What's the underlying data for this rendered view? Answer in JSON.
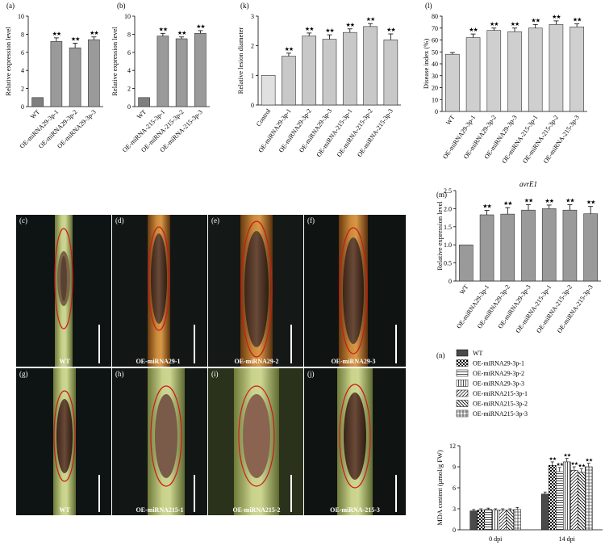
{
  "chart_data": [
    {
      "id": "a",
      "panel_label": "(a)",
      "type": "bar",
      "ylabel": "Relative expression level",
      "ylim": [
        0,
        10
      ],
      "yticks": [
        0,
        2,
        4,
        6,
        8,
        10
      ],
      "categories": [
        "WT",
        "OE-miRNA29-3p-1",
        "OE-miRNA29-3p-2",
        "OE-miRNA29-3p-3"
      ],
      "values": [
        1.0,
        7.2,
        6.5,
        7.4
      ],
      "errors": [
        0,
        0.4,
        0.5,
        0.3
      ],
      "sig": [
        "",
        "★★",
        "★★",
        "★★"
      ],
      "bar_colors": [
        "#7f7f7f",
        "#9a9a9a",
        "#9a9a9a",
        "#9a9a9a"
      ]
    },
    {
      "id": "b",
      "panel_label": "(b)",
      "type": "bar",
      "ylabel": "Relative expression level",
      "ylim": [
        0,
        10
      ],
      "yticks": [
        0,
        2,
        4,
        6,
        8,
        10
      ],
      "categories": [
        "WT",
        "OE-miRNA-215-3p-1",
        "OE-miRNA-215-3p-2",
        "OE-miRNA-215-3p-3"
      ],
      "values": [
        1.0,
        7.8,
        7.5,
        8.1
      ],
      "errors": [
        0,
        0.3,
        0.2,
        0.3
      ],
      "sig": [
        "",
        "★★",
        "★★",
        "★★"
      ],
      "bar_colors": [
        "#7f7f7f",
        "#9a9a9a",
        "#9a9a9a",
        "#9a9a9a"
      ]
    },
    {
      "id": "k",
      "panel_label": "(k)",
      "type": "bar",
      "ylabel": "Relative lesion diameter",
      "ylim": [
        0,
        3
      ],
      "yticks": [
        0,
        1,
        2,
        3
      ],
      "categories": [
        "Control",
        "OE-miRNA29-3p-1",
        "OE-miRNA29-3p-2",
        "OE-miRNA29-3p-3",
        "OE-miRNA-215-3p-1",
        "OE-miRNA-215-3p-2",
        "OE-miRNA-215-3p-3"
      ],
      "values": [
        1.0,
        1.65,
        2.33,
        2.22,
        2.45,
        2.65,
        2.2
      ],
      "errors": [
        0,
        0.1,
        0.1,
        0.15,
        0.12,
        0.1,
        0.2
      ],
      "sig": [
        "",
        "★★",
        "★★",
        "★★",
        "★★",
        "★★",
        "★★"
      ],
      "bar_colors": [
        "#e0e0e0",
        "#c8c8c8",
        "#c8c8c8",
        "#c8c8c8",
        "#c8c8c8",
        "#c8c8c8",
        "#c8c8c8"
      ]
    },
    {
      "id": "l",
      "panel_label": "(l)",
      "type": "bar",
      "ylabel": "Disease index (%)",
      "ylim": [
        0,
        80
      ],
      "yticks": [
        0,
        10,
        20,
        30,
        40,
        50,
        60,
        70,
        80
      ],
      "categories": [
        "WT",
        "OE-miRNA29-3p-1",
        "OE-miRNA29-3p-2",
        "OE-miRNA29-3p-3",
        "OE-miRNA-215-3p-1",
        "OE-miRNA-215-3p-2",
        "OE-miRNA-215-3p-3"
      ],
      "values": [
        48,
        62,
        68,
        67,
        70,
        73,
        71
      ],
      "errors": [
        1.5,
        3,
        2,
        3,
        3,
        3,
        2.5
      ],
      "sig": [
        "",
        "★★",
        "★★",
        "★★",
        "★★",
        "★★",
        "★★"
      ],
      "bar_colors": [
        "#cfcfcf",
        "#cfcfcf",
        "#cfcfcf",
        "#cfcfcf",
        "#cfcfcf",
        "#cfcfcf",
        "#cfcfcf"
      ]
    },
    {
      "id": "m",
      "panel_label": "(m)",
      "type": "bar",
      "title": "avrE1",
      "ylabel": "Relative expression level",
      "ylim": [
        0,
        2.5
      ],
      "yticks": [
        0,
        0.5,
        1.0,
        1.5,
        2.0,
        2.5
      ],
      "ytick_labels": [
        "0",
        "0.5",
        "1.0",
        "1.5",
        "2.0",
        "2.5"
      ],
      "categories": [
        "WT",
        "OE-miRNA29-3p-1",
        "OE-miRNA29-3p-2",
        "OE-miRNA29-3p-3",
        "OE-miRNA-215-3p-1",
        "OE-miRNA-215-3p-2",
        "OE-miRNA-215-3p-3"
      ],
      "values": [
        1.0,
        1.83,
        1.85,
        1.96,
        2.0,
        1.96,
        1.86
      ],
      "errors": [
        0,
        0.12,
        0.18,
        0.15,
        0.1,
        0.15,
        0.2
      ],
      "sig": [
        "",
        "★★",
        "★★",
        "★★",
        "★★",
        "★★",
        "★★"
      ],
      "bar_colors": [
        "#9a9a9a",
        "#9a9a9a",
        "#9a9a9a",
        "#9a9a9a",
        "#9a9a9a",
        "#9a9a9a",
        "#9a9a9a"
      ]
    },
    {
      "id": "n",
      "panel_label": "(n)",
      "type": "bar",
      "ylabel": "MDA content (μmol/g FW)",
      "ylim": [
        0,
        12
      ],
      "yticks": [
        0,
        3,
        6,
        9,
        12
      ],
      "categories": [
        "0 dpi",
        "14 dpi"
      ],
      "legend_position": "top",
      "series": [
        {
          "name": "WT",
          "values": [
            2.7,
            5.1
          ],
          "errors": [
            0.2,
            0.3
          ],
          "sig": [
            "",
            ""
          ],
          "pattern": "solid"
        },
        {
          "name": "OE-miRNA29-3p-1",
          "values": [
            2.8,
            9.2
          ],
          "errors": [
            0.2,
            0.5
          ],
          "sig": [
            "",
            "★★"
          ],
          "pattern": "checker"
        },
        {
          "name": "OE-miRNA29-3p-2",
          "values": [
            2.9,
            8.3
          ],
          "errors": [
            0.2,
            0.6
          ],
          "sig": [
            "",
            "★★"
          ],
          "pattern": "hlines"
        },
        {
          "name": "OE-miRNA29-3p-3",
          "values": [
            2.8,
            9.7
          ],
          "errors": [
            0.2,
            0.5
          ],
          "sig": [
            "",
            "★★"
          ],
          "pattern": "vlines"
        },
        {
          "name": "OE-miRNA215-3p-1",
          "values": [
            2.8,
            8.5
          ],
          "errors": [
            0.2,
            0.5
          ],
          "sig": [
            "",
            "★★"
          ],
          "pattern": "diag"
        },
        {
          "name": "OE-miRNA215-3p-2",
          "values": [
            2.8,
            8.2
          ],
          "errors": [
            0.2,
            0.5
          ],
          "sig": [
            "",
            "★★"
          ],
          "pattern": "backdiag"
        },
        {
          "name": "OE-miRNA215-3p-3",
          "values": [
            2.9,
            9.0
          ],
          "errors": [
            0.3,
            0.5
          ],
          "sig": [
            "",
            "★★"
          ],
          "pattern": "grid"
        }
      ]
    }
  ],
  "photos": {
    "panels": [
      {
        "letter": "(c)",
        "label": "WT"
      },
      {
        "letter": "(d)",
        "label": "OE-miRNA29-1"
      },
      {
        "letter": "(e)",
        "label": "OE-miRNA29-2"
      },
      {
        "letter": "(f)",
        "label": "OE-miRNA29-3"
      },
      {
        "letter": "(g)",
        "label": "WT"
      },
      {
        "letter": "(h)",
        "label": "OE-miRNA215-1"
      },
      {
        "letter": "(i)",
        "label": "OE-miRNA215-2"
      },
      {
        "letter": "(j)",
        "label": "OE-miRNA-215-3"
      }
    ]
  }
}
